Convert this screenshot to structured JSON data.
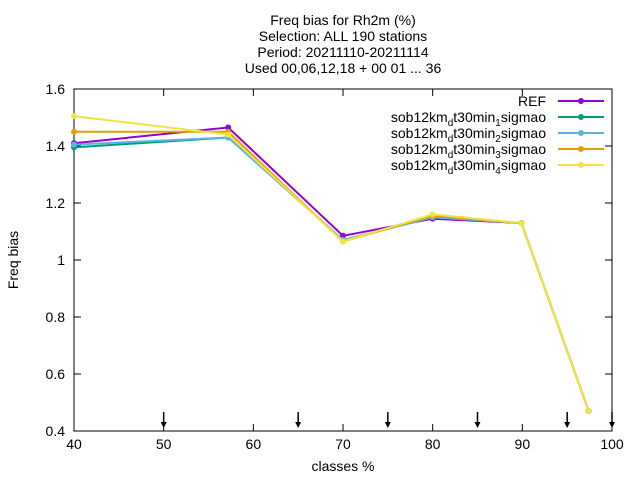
{
  "chart_data": {
    "type": "line",
    "title_lines": [
      "Freq bias  for Rh2m (%)",
      "Selection: ALL    190 stations",
      "Period: 20211110-20211114",
      "Used 00,06,12,18 + 00 01 ... 36"
    ],
    "xlabel": "classes %",
    "ylabel": "Freq bias",
    "xlim": [
      40,
      100
    ],
    "ylim": [
      0.4,
      1.6
    ],
    "xticks": [
      40,
      50,
      60,
      70,
      80,
      90,
      100
    ],
    "yticks": [
      0.4,
      0.6,
      0.8,
      1,
      1.2,
      1.4,
      1.6
    ],
    "ytick_labels": [
      "0.4",
      "0.6",
      "0.8",
      "1",
      "1.2",
      "1.4",
      "1.6"
    ],
    "grid": false,
    "legend_position": "top-right",
    "class_markers_x": [
      50,
      65,
      75,
      85,
      95,
      100
    ],
    "series": [
      {
        "name": "REF",
        "name_parts": [
          [
            "REF",
            ""
          ]
        ],
        "color": "#9400d3",
        "x": [
          40,
          57.2,
          70,
          80,
          89.9,
          97.4
        ],
        "y": [
          1.41,
          1.465,
          1.085,
          1.145,
          1.13,
          0.47
        ]
      },
      {
        "name": "sob12km_dt30min_1sigmao",
        "name_parts": [
          [
            "sob12km",
            ""
          ],
          [
            "d",
            "sub"
          ],
          [
            "t30min",
            ""
          ],
          [
            "1",
            "sub"
          ],
          [
            "sigmao",
            ""
          ]
        ],
        "color": "#009e73",
        "x": [
          40,
          57.2,
          70,
          80,
          89.9,
          97.4
        ],
        "y": [
          1.395,
          1.43,
          1.07,
          1.15,
          1.13,
          0.47
        ]
      },
      {
        "name": "sob12km_dt30min_2sigmao",
        "name_parts": [
          [
            "sob12km",
            ""
          ],
          [
            "d",
            "sub"
          ],
          [
            "t30min",
            ""
          ],
          [
            "2",
            "sub"
          ],
          [
            "sigmao",
            ""
          ]
        ],
        "color": "#56b4e9",
        "x": [
          40,
          57.2,
          70,
          80,
          89.9,
          97.4
        ],
        "y": [
          1.405,
          1.43,
          1.07,
          1.15,
          1.13,
          0.47
        ]
      },
      {
        "name": "sob12km_dt30min_3sigmao",
        "name_parts": [
          [
            "sob12km",
            ""
          ],
          [
            "d",
            "sub"
          ],
          [
            "t30min",
            ""
          ],
          [
            "3",
            "sub"
          ],
          [
            "sigmao",
            ""
          ]
        ],
        "color": "#e69f00",
        "x": [
          40,
          57.2,
          70,
          80,
          89.9,
          97.4
        ],
        "y": [
          1.45,
          1.45,
          1.065,
          1.155,
          1.13,
          0.47
        ]
      },
      {
        "name": "sob12km_dt30min_4sigmao",
        "name_parts": [
          [
            "sob12km",
            ""
          ],
          [
            "d",
            "sub"
          ],
          [
            "t30min",
            ""
          ],
          [
            "4",
            "sub"
          ],
          [
            "sigmao",
            ""
          ]
        ],
        "color": "#f0e442",
        "x": [
          40,
          57.2,
          70,
          80,
          89.9,
          97.4
        ],
        "y": [
          1.505,
          1.44,
          1.065,
          1.16,
          1.13,
          0.47
        ]
      }
    ]
  }
}
